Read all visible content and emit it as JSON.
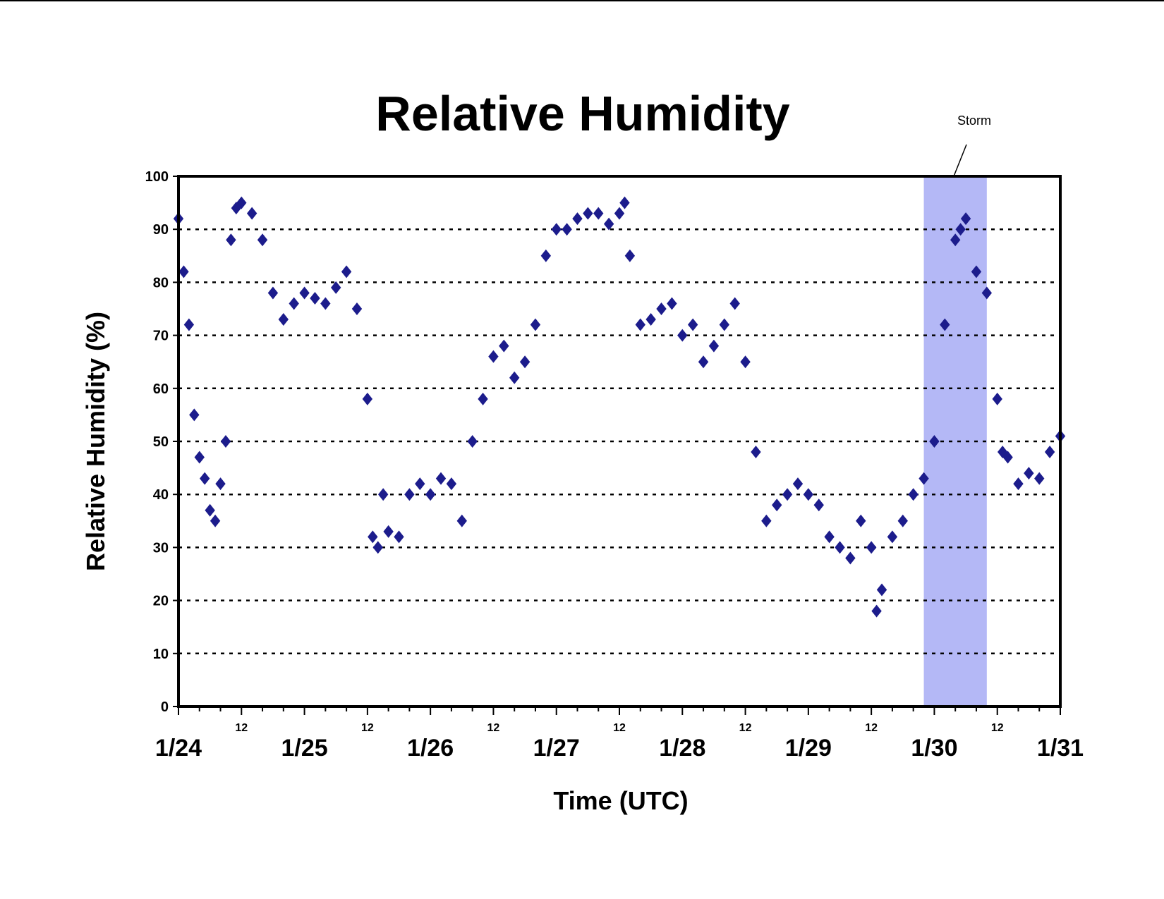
{
  "chart_data": {
    "type": "scatter",
    "title": "Relative Humidity",
    "xlabel": "Time (UTC)",
    "ylabel": "Relative Humidity (%)",
    "ylim": [
      0,
      100
    ],
    "yticks": [
      0,
      10,
      20,
      30,
      40,
      50,
      60,
      70,
      80,
      90,
      100
    ],
    "xlim": [
      "1/24",
      "1/31"
    ],
    "x_major_ticks": [
      "1/24",
      "1/25",
      "1/26",
      "1/27",
      "1/28",
      "1/29",
      "1/30",
      "1/31"
    ],
    "x_minor_tick_label": "12",
    "grid": "horizontal dotted",
    "legend": "none",
    "marker": "diamond",
    "colors": {
      "series": "#1c1c8c",
      "storm_band": "#b4b8f6"
    },
    "annotation": {
      "text": "Storm",
      "x_start": "1/29 22:00",
      "x_end": "1/30 10:00"
    },
    "series": [
      {
        "x": [
          "1/24 00:00",
          "1/24 01:00",
          "1/24 02:00",
          "1/24 03:00",
          "1/24 04:00",
          "1/24 05:00",
          "1/24 06:00",
          "1/24 07:00",
          "1/24 08:00",
          "1/24 09:00",
          "1/24 10:00",
          "1/24 11:00",
          "1/24 12:00",
          "1/24 14:00",
          "1/24 16:00",
          "1/24 18:00",
          "1/24 20:00",
          "1/24 22:00",
          "1/25 00:00",
          "1/25 02:00",
          "1/25 04:00",
          "1/25 06:00",
          "1/25 08:00",
          "1/25 10:00",
          "1/25 12:00",
          "1/25 13:00",
          "1/25 14:00",
          "1/25 15:00",
          "1/25 16:00",
          "1/25 18:00",
          "1/25 20:00",
          "1/25 22:00",
          "1/26 00:00",
          "1/26 02:00",
          "1/26 04:00",
          "1/26 06:00",
          "1/26 08:00",
          "1/26 10:00",
          "1/26 12:00",
          "1/26 14:00",
          "1/26 16:00",
          "1/26 18:00",
          "1/26 20:00",
          "1/26 22:00",
          "1/27 00:00",
          "1/27 02:00",
          "1/27 04:00",
          "1/27 06:00",
          "1/27 08:00",
          "1/27 10:00",
          "1/27 12:00",
          "1/27 13:00",
          "1/27 14:00",
          "1/27 16:00",
          "1/27 18:00",
          "1/27 20:00",
          "1/27 22:00",
          "1/28 00:00",
          "1/28 02:00",
          "1/28 04:00",
          "1/28 06:00",
          "1/28 08:00",
          "1/28 10:00",
          "1/28 12:00",
          "1/28 14:00",
          "1/28 16:00",
          "1/28 18:00",
          "1/28 20:00",
          "1/28 22:00",
          "1/29 00:00",
          "1/29 02:00",
          "1/29 04:00",
          "1/29 06:00",
          "1/29 08:00",
          "1/29 10:00",
          "1/29 12:00",
          "1/29 13:00",
          "1/29 14:00",
          "1/29 16:00",
          "1/29 18:00",
          "1/29 20:00",
          "1/29 22:00",
          "1/30 00:00",
          "1/30 02:00",
          "1/30 04:00",
          "1/30 05:00",
          "1/30 06:00",
          "1/30 08:00",
          "1/30 10:00",
          "1/30 12:00",
          "1/30 13:00",
          "1/30 14:00",
          "1/30 16:00",
          "1/30 18:00",
          "1/30 20:00",
          "1/30 22:00",
          "1/31 00:00"
        ],
        "y": [
          92,
          82,
          72,
          55,
          47,
          43,
          37,
          35,
          42,
          50,
          88,
          94,
          95,
          93,
          88,
          78,
          73,
          76,
          78,
          77,
          76,
          79,
          82,
          75,
          58,
          32,
          30,
          40,
          33,
          32,
          40,
          42,
          40,
          43,
          42,
          35,
          50,
          58,
          66,
          68,
          62,
          65,
          72,
          85,
          90,
          90,
          92,
          93,
          93,
          91,
          93,
          95,
          85,
          72,
          73,
          75,
          76,
          70,
          72,
          65,
          68,
          72,
          76,
          65,
          48,
          35,
          38,
          40,
          42,
          40,
          38,
          32,
          30,
          28,
          35,
          30,
          18,
          22,
          32,
          35,
          40,
          43,
          50,
          72,
          88,
          90,
          92,
          82,
          78,
          58,
          48,
          47,
          42,
          44,
          43,
          48,
          51
        ]
      }
    ]
  }
}
